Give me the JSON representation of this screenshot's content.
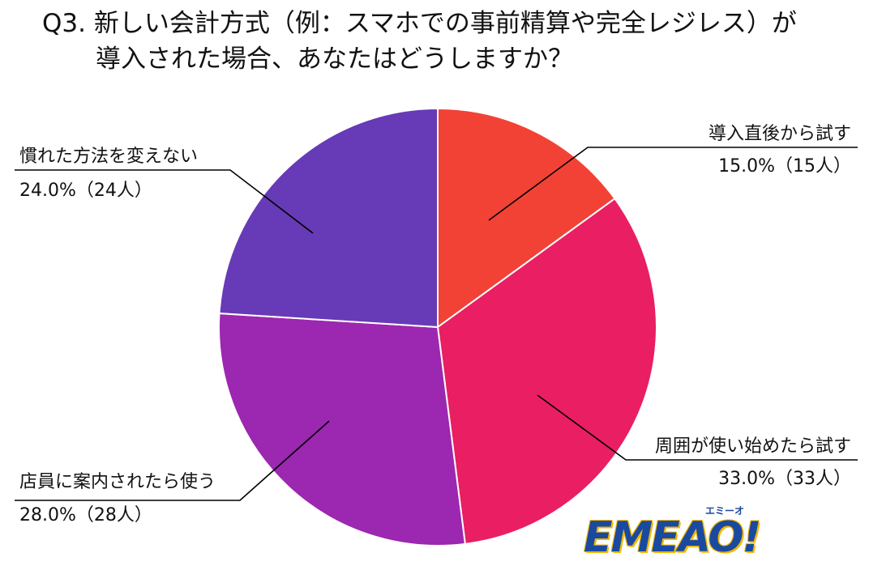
{
  "title": {
    "line1": "Q3. 新しい会計方式（例：スマホでの事前精算や完全レジレス）が",
    "line2": "導入された場合、あなたはどうしますか？"
  },
  "logo": {
    "text": "EMEAO!",
    "kana": "エミーオ"
  },
  "chart_data": {
    "type": "pie",
    "start_angle": 90,
    "direction": "clockwise",
    "slices": [
      {
        "label": "導入直後から試す",
        "value_text": "15.0%（15人）",
        "percent": 15.0,
        "count": 15,
        "color": "#f24236"
      },
      {
        "label": "周囲が使い始めたら試す",
        "value_text": "33.0%（33人）",
        "percent": 33.0,
        "count": 33,
        "color": "#e91e63"
      },
      {
        "label": "店員に案内されたら使う",
        "value_text": "28.0%（28人）",
        "percent": 28.0,
        "count": 28,
        "color": "#9c27b0"
      },
      {
        "label": "慣れた方法を変えない",
        "value_text": "24.0%（24人）",
        "percent": 24.0,
        "count": 24,
        "color": "#673ab7"
      }
    ]
  }
}
